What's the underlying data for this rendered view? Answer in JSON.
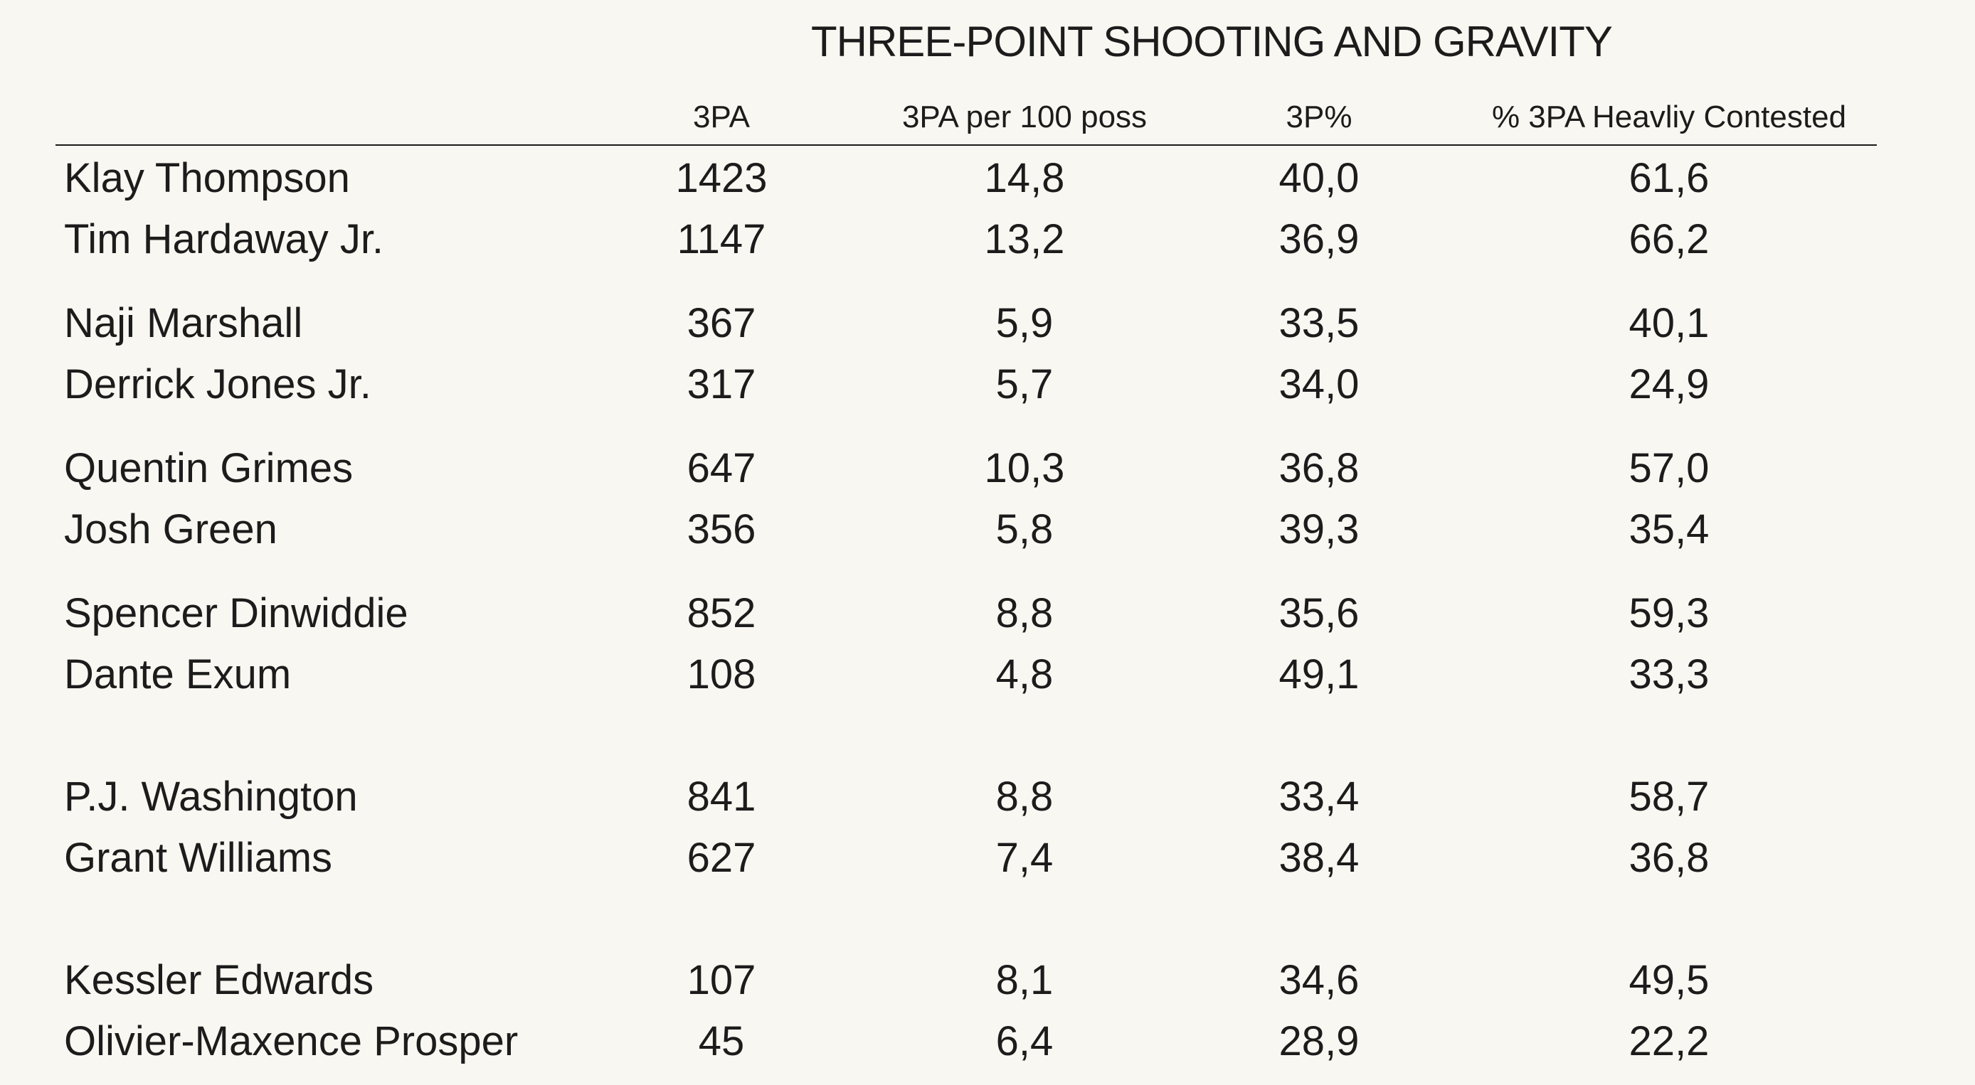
{
  "chart_data": {
    "type": "table",
    "title": "THREE-POINT SHOOTING AND GRAVITY",
    "columns": [
      "",
      "3PA",
      "3PA per 100 poss",
      "3P%",
      "% 3PA Heavliy Contested"
    ],
    "rows": [
      {
        "player": "Klay Thompson",
        "values": [
          "1423",
          "14,8",
          "40,0",
          "61,6"
        ]
      },
      {
        "player": "Tim Hardaway Jr.",
        "values": [
          "1147",
          "13,2",
          "36,9",
          "66,2"
        ]
      },
      {
        "player": "Naji Marshall",
        "values": [
          "367",
          "5,9",
          "33,5",
          "40,1"
        ]
      },
      {
        "player": "Derrick Jones Jr.",
        "values": [
          "317",
          "5,7",
          "34,0",
          "24,9"
        ]
      },
      {
        "player": "Quentin Grimes",
        "values": [
          "647",
          "10,3",
          "36,8",
          "57,0"
        ]
      },
      {
        "player": "Josh Green",
        "values": [
          "356",
          "5,8",
          "39,3",
          "35,4"
        ]
      },
      {
        "player": "Spencer Dinwiddie",
        "values": [
          "852",
          "8,8",
          "35,6",
          "59,3"
        ]
      },
      {
        "player": "Dante Exum",
        "values": [
          "108",
          "4,8",
          "49,1",
          "33,3"
        ]
      },
      {
        "player": "P.J. Washington",
        "values": [
          "841",
          "8,8",
          "33,4",
          "58,7"
        ]
      },
      {
        "player": "Grant Williams",
        "values": [
          "627",
          "7,4",
          "38,4",
          "36,8"
        ]
      },
      {
        "player": "Kessler Edwards",
        "values": [
          "107",
          "8,1",
          "34,6",
          "49,5"
        ]
      },
      {
        "player": "Olivier-Maxence Prosper",
        "values": [
          "45",
          "6,4",
          "28,9",
          "22,2"
        ]
      }
    ]
  }
}
